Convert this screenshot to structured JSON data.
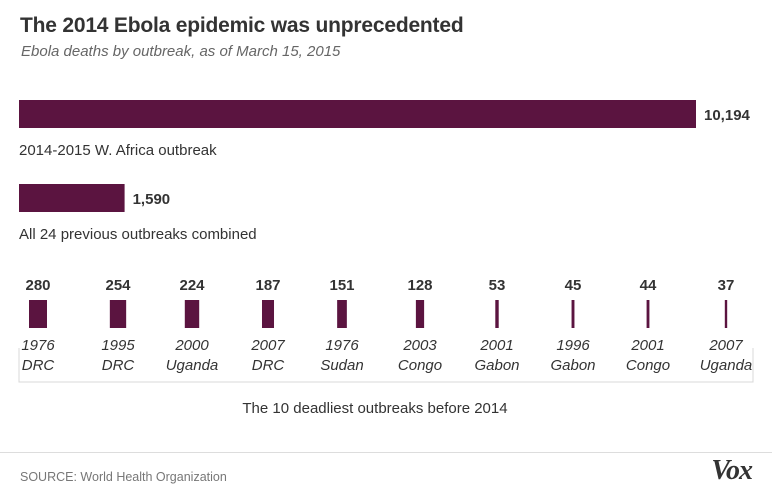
{
  "chart_title": "The 2014 Ebola epidemic was unprecedented",
  "chart_subtitle": "Ebola deaths by outbreak, as of March 15, 2015",
  "source": "SOURCE: World Health Organization",
  "logo_text": "Vox",
  "colors": {
    "bar": "#5b1440",
    "text": "#333333",
    "muted": "#666666"
  },
  "chart_data": [
    {
      "type": "bar",
      "orientation": "horizontal",
      "categories": [
        "2014-2015 W. Africa outbreak",
        "All 24 previous outbreaks combined"
      ],
      "values": [
        10194,
        1590
      ],
      "value_labels": [
        "10,194",
        "1,590"
      ]
    },
    {
      "type": "bar",
      "orientation": "vertical-width-encoded",
      "title": "The 10 deadliest outbreaks before 2014",
      "categories": [
        {
          "year": "1976",
          "place": "DRC"
        },
        {
          "year": "1995",
          "place": "DRC"
        },
        {
          "year": "2000",
          "place": "Uganda"
        },
        {
          "year": "2007",
          "place": "DRC"
        },
        {
          "year": "1976",
          "place": "Sudan"
        },
        {
          "year": "2003",
          "place": "Congo"
        },
        {
          "year": "2001",
          "place": "Gabon"
        },
        {
          "year": "1996",
          "place": "Gabon"
        },
        {
          "year": "2001",
          "place": "Congo"
        },
        {
          "year": "2007",
          "place": "Uganda"
        }
      ],
      "values": [
        280,
        254,
        224,
        187,
        151,
        128,
        53,
        45,
        44,
        37
      ]
    }
  ]
}
